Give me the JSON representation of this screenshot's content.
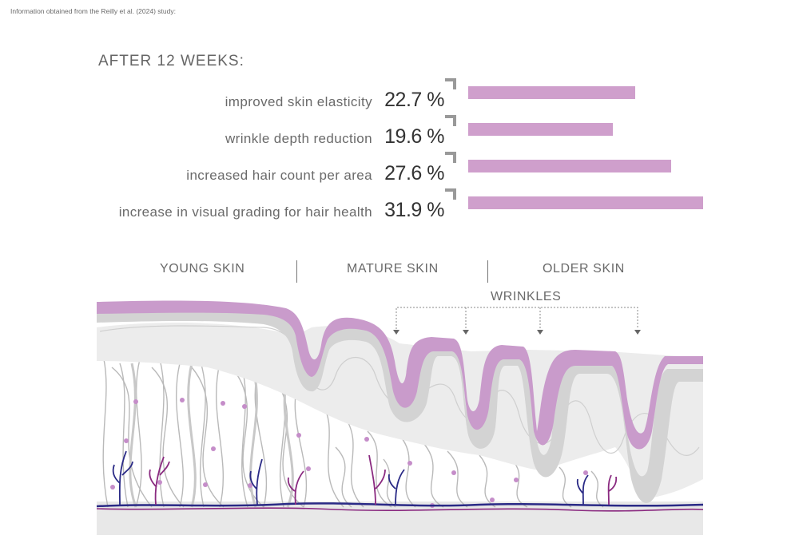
{
  "source_note": "Information obtained from the Reilly et al. (2024) study:",
  "chart_data": {
    "type": "bar",
    "orientation": "horizontal",
    "title": "AFTER 12 WEEKS:",
    "categories": [
      "improved skin elasticity",
      "wrinkle depth reduction",
      "increased hair count per area",
      "increase in visual grading for hair health"
    ],
    "values": [
      22.7,
      19.6,
      27.6,
      31.9
    ],
    "value_labels": [
      "22.7 %",
      "19.6 %",
      "27.6 %",
      "31.9 %"
    ],
    "unit": "%",
    "xlim": [
      0,
      31.9
    ],
    "bar_color": "#cf9fcc"
  },
  "illustration": {
    "sections": [
      "YOUNG SKIN",
      "MATURE SKIN",
      "OLDER SKIN"
    ],
    "wrinkles_label": "WRINKLES"
  },
  "colors": {
    "epidermis": "#c99bcb",
    "dermis_band": "#cfcfcf",
    "dermis_fill": "#ececec",
    "fibers": "#b9b9b9",
    "cells": "#c58dc9",
    "vessel_blue": "#2a2a86",
    "vessel_purple": "#8a2a80",
    "base": "#e8e8e8"
  }
}
